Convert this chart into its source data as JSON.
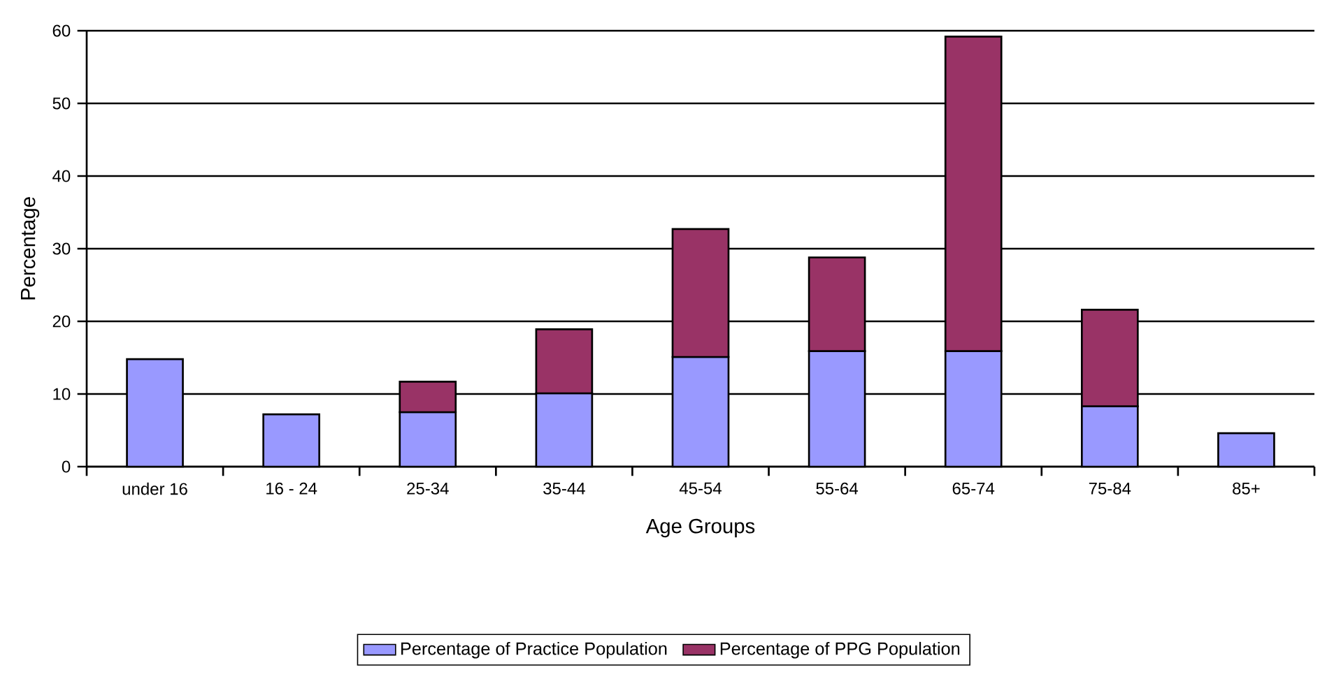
{
  "chart_data": {
    "type": "bar",
    "stacked": true,
    "xlabel": "Age Groups",
    "ylabel": "Percentage",
    "categories": [
      "under 16",
      "16 - 24",
      "25-34",
      "35-44",
      "45-54",
      "55-64",
      "65-74",
      "75-84",
      "85+"
    ],
    "series": [
      {
        "name": "Percentage of  Practice Population",
        "color": "#9999ff",
        "values": [
          14.8,
          7.2,
          7.5,
          10.1,
          15.1,
          15.9,
          15.9,
          8.3,
          4.6
        ]
      },
      {
        "name": "Percentage of  PPG Population",
        "color": "#993366",
        "values": [
          null,
          null,
          4.2,
          8.8,
          17.6,
          12.9,
          43.3,
          13.3,
          null
        ]
      }
    ],
    "ylim": [
      0,
      60
    ],
    "yticks": [
      0,
      10,
      20,
      30,
      40,
      50,
      60
    ],
    "grid": "y",
    "legend": "bottom"
  }
}
